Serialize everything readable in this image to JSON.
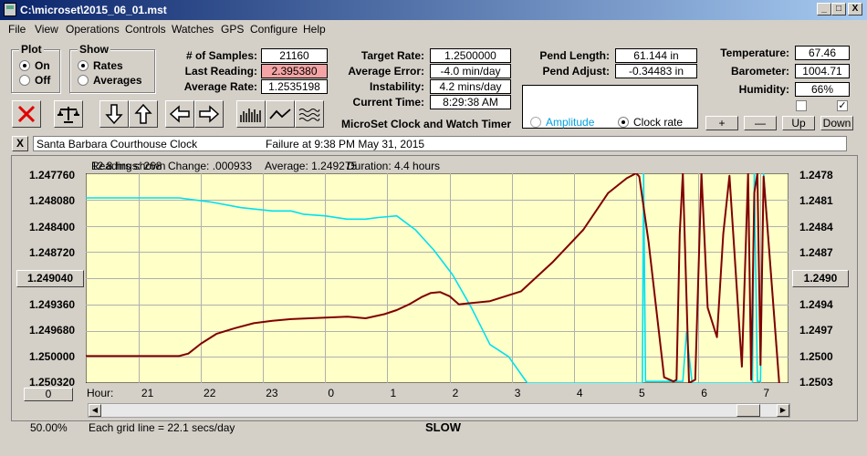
{
  "window": {
    "title": "C:\\microset\\2015_06_01.mst",
    "minimize": "_",
    "maximize": "□",
    "close": "X"
  },
  "menu": [
    "File",
    "View",
    "Operations",
    "Controls",
    "Watches",
    "GPS",
    "Configure",
    "Help"
  ],
  "plot_group": {
    "title": "Plot",
    "on": "On",
    "off": "Off",
    "selected": "On"
  },
  "show_group": {
    "title": "Show",
    "rates": "Rates",
    "averages": "Averages",
    "selected": "Rates"
  },
  "stats": {
    "samples_label": "# of Samples:",
    "samples": "21160",
    "last_label": "Last Reading:",
    "last": "2.395380",
    "avgrate_label": "Average Rate:",
    "avgrate": "1.2535198",
    "target_label": "Target Rate:",
    "target": "1.2500000",
    "avgerr_label": "Average Error:",
    "avgerr": "-4.0 min/day",
    "instab_label": "Instability:",
    "instab": "4.2 mins/day",
    "time_label": "Current Time:",
    "time": "8:29:38 AM",
    "pendlen_label": "Pend Length:",
    "pendlen": "61.144 in",
    "pendadj_label": "Pend Adjust:",
    "pendadj": "-0.34483 in",
    "temp_label": "Temperature:",
    "temp": "67.46",
    "baro_label": "Barometer:",
    "baro": "1004.71",
    "hum_label": "Humidity:",
    "hum": "66%"
  },
  "app_caption": "MicroSet Clock and Watch Timer",
  "mode": {
    "amplitude": "Amplitude",
    "clockrate": "Clock rate",
    "selected": "Clock rate"
  },
  "zoom_buttons": {
    "plus": "+",
    "minus": "—",
    "up": "Up",
    "down": "Down"
  },
  "checkbox_right": "✓",
  "info": {
    "close": "X",
    "clock": "Santa Barbara Courthouse Clock",
    "status": "Failure at 9:38 PM May 31, 2015"
  },
  "plot_header": {
    "overlapped_a": "Readings: 268",
    "overlapped_b": "12.8 hrs shown",
    "change": "Change: .000933",
    "average": "Average: 1.249275",
    "duration": "Duration: 4.4 hours"
  },
  "left_axis": [
    "1.247760",
    "1.248080",
    "1.248400",
    "1.248720",
    "1.249040",
    "1.249360",
    "1.249680",
    "1.250000",
    "1.250320"
  ],
  "right_axis": [
    "1.2478",
    "1.2481",
    "1.2484",
    "1.2487",
    "1.2490",
    "1.2494",
    "1.2497",
    "1.2500",
    "1.2503"
  ],
  "left_button": "1.249040",
  "right_button": "1.2490",
  "zero_button": "0",
  "hour_label": "Hour:",
  "hour_ticks": [
    "21",
    "22",
    "23",
    "0",
    "1",
    "2",
    "3",
    "4",
    "5",
    "6",
    "7"
  ],
  "footer": {
    "pct": "50.00%",
    "grid": "Each grid line = 22.1 secs/day",
    "status": "SLOW"
  },
  "colors": {
    "plot_bg": "#ffffc8",
    "rate_line": "#800000",
    "amp_line": "#00e0f0",
    "grid": "#b0b0b0"
  },
  "chart_data": {
    "type": "line",
    "title": "",
    "xlabel": "Hour:",
    "ylabel": "",
    "ylim": [
      1.24776,
      1.25032
    ],
    "y_axis_inverted": true,
    "x_ticks": [
      "21",
      "22",
      "23",
      "0",
      "1",
      "2",
      "3",
      "4",
      "5",
      "6",
      "7"
    ],
    "x_hours": [
      20.85,
      21.85,
      22.85,
      23.85,
      24.85,
      25.85,
      26.85,
      27.85,
      28.85,
      29.85,
      30.85
    ],
    "series": [
      {
        "x": [
          20.0,
          20.5,
          21.0,
          21.5,
          21.65,
          21.85,
          22.1,
          22.4,
          22.7,
          23.0,
          23.3,
          23.6,
          23.9,
          24.2,
          24.5,
          24.8,
          25.0,
          25.2,
          25.4,
          25.55,
          25.7,
          25.85,
          26.0,
          26.5,
          27.0,
          27.5,
          28.0,
          28.4,
          28.7,
          28.85,
          28.9,
          29.05,
          29.3,
          29.45,
          29.5,
          29.55,
          29.6,
          29.7,
          29.8,
          29.9,
          30.0,
          30.15,
          30.25,
          30.35,
          30.55,
          30.65,
          30.7,
          30.75,
          30.8,
          30.85,
          30.9,
          31.15
        ],
        "y": [
          1.24999,
          1.24999,
          1.24999,
          1.24999,
          1.24996,
          1.24984,
          1.24972,
          1.24965,
          1.24959,
          1.24956,
          1.24954,
          1.24953,
          1.24952,
          1.24951,
          1.24953,
          1.24948,
          1.24943,
          1.24936,
          1.24927,
          1.24922,
          1.24921,
          1.24926,
          1.24936,
          1.24932,
          1.2492,
          1.24885,
          1.24845,
          1.248,
          1.24782,
          1.24776,
          1.2478,
          1.2486,
          1.25025,
          1.2503,
          1.25028,
          1.2485,
          1.24776,
          1.25032,
          1.25028,
          1.24776,
          1.2494,
          1.24976,
          1.2485,
          1.24779,
          1.25012,
          1.24776,
          1.25028,
          1.248,
          1.24776,
          1.2501,
          1.2478,
          1.25032
        ]
      },
      {
        "x": [
          20.0,
          21.0,
          21.5,
          22.0,
          22.5,
          23.0,
          23.3,
          23.5,
          23.85,
          24.2,
          24.5,
          24.7,
          25.0,
          25.3,
          25.6,
          25.9,
          26.2,
          26.5,
          26.8,
          27.1,
          27.4,
          27.7,
          27.85,
          28.0,
          28.5,
          28.95,
          28.97,
          29.0,
          29.6,
          29.66,
          29.75,
          30.0,
          30.72,
          30.75,
          30.8,
          30.85,
          30.9,
          31.15
        ],
        "y": [
          1.24806,
          1.24806,
          1.24806,
          1.24811,
          1.24818,
          1.24822,
          1.24822,
          1.24826,
          1.24828,
          1.24832,
          1.24832,
          1.2483,
          1.24828,
          1.24845,
          1.2487,
          1.249,
          1.2494,
          1.24985,
          1.25,
          1.25032,
          1.25032,
          1.25032,
          1.25032,
          1.25032,
          1.25032,
          1.25032,
          1.24776,
          1.2503,
          1.2503,
          1.2497,
          1.25032,
          1.25032,
          1.25032,
          1.24776,
          1.2503,
          1.2503,
          1.24776,
          1.25032
        ]
      }
    ]
  }
}
